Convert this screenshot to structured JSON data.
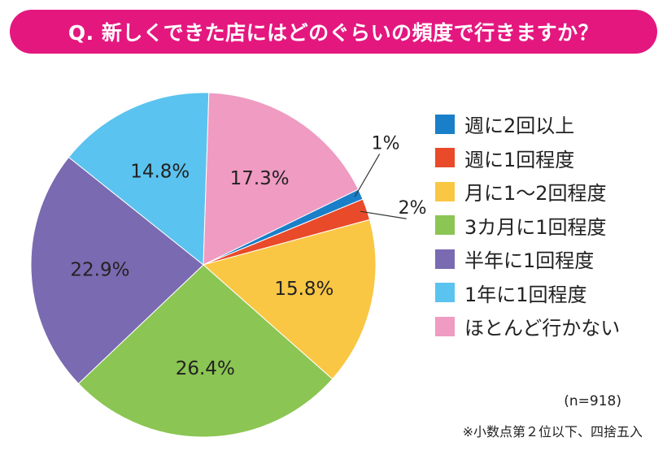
{
  "title": "Q. 新しくできた店にはどのぐらいの頻度で行きますか？",
  "sample_size": "(n=918)",
  "note": "※小数点第２位以下、四捨五入",
  "chart_data": {
    "type": "pie",
    "title": "Q. 新しくできた店にはどのぐらいの頻度で行きますか？",
    "slices": [
      {
        "label": "週に2回以上",
        "value": 1.0,
        "display": "1%",
        "color": "#1a7fc9"
      },
      {
        "label": "週に1回程度",
        "value": 2.0,
        "display": "2%",
        "color": "#e84a2a"
      },
      {
        "label": "月に1〜2回程度",
        "value": 15.8,
        "display": "15.8%",
        "color": "#f9c744"
      },
      {
        "label": "3カ月に1回程度",
        "value": 26.4,
        "display": "26.4%",
        "color": "#8bc553"
      },
      {
        "label": "半年に1回程度",
        "value": 22.9,
        "display": "22.9%",
        "color": "#7a6ab1"
      },
      {
        "label": "1年に1回程度",
        "value": 14.8,
        "display": "14.8%",
        "color": "#5bc3ef"
      },
      {
        "label": "ほとんど行かない",
        "value": 17.3,
        "display": "17.3%",
        "color": "#ef9bc2"
      }
    ],
    "legend_position": "right"
  }
}
